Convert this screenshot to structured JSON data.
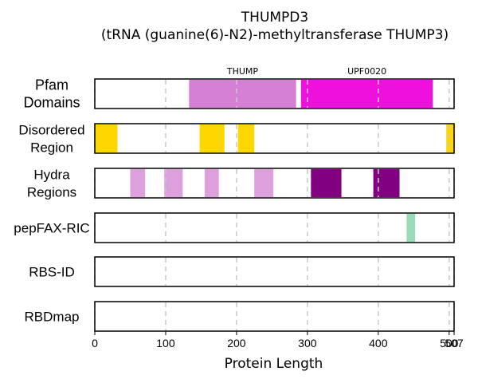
{
  "title_line1": "THUMPD3",
  "title_line2": "(tRNA (guanine(6)-N2)-methyltransferase THUMP3)",
  "chart_data": {
    "type": "track",
    "xlabel": "Protein Length",
    "xlim": [
      0,
      507
    ],
    "xticks": [
      0,
      100,
      200,
      300,
      400,
      500,
      507
    ],
    "xtick_labels": [
      "0",
      "100",
      "200",
      "300",
      "400",
      "500",
      "507"
    ],
    "protein_length": 507,
    "grid": "dashed vertical at ticks",
    "tracks": [
      {
        "name": "Pfam Domains",
        "label_lines": [
          "Pfam",
          "Domains"
        ],
        "segments": [
          {
            "start": 133,
            "end": 284,
            "color": "#d580d5",
            "label": "THUMP"
          },
          {
            "start": 291,
            "end": 477,
            "color": "#ee11dd",
            "label": "UPF0020"
          }
        ]
      },
      {
        "name": "Disordered Region",
        "label_lines": [
          "Disordered",
          "Region"
        ],
        "segments": [
          {
            "start": 0,
            "end": 32,
            "color": "#ffd700"
          },
          {
            "start": 148,
            "end": 183,
            "color": "#ffd700"
          },
          {
            "start": 202,
            "end": 225,
            "color": "#ffd700"
          },
          {
            "start": 496,
            "end": 507,
            "color": "#ffd700"
          }
        ]
      },
      {
        "name": "Hydra Regions",
        "label_lines": [
          "Hydra",
          "Regions"
        ],
        "segments": [
          {
            "start": 50,
            "end": 71,
            "color": "#dda0dd"
          },
          {
            "start": 98,
            "end": 124,
            "color": "#dda0dd"
          },
          {
            "start": 155,
            "end": 175,
            "color": "#dda0dd"
          },
          {
            "start": 225,
            "end": 252,
            "color": "#dda0dd"
          },
          {
            "start": 305,
            "end": 348,
            "color": "#800080"
          },
          {
            "start": 393,
            "end": 430,
            "color": "#800080"
          }
        ]
      },
      {
        "name": "pepFAX-RIC",
        "label_lines": [
          "pepFAX-RIC"
        ],
        "segments": [
          {
            "start": 440,
            "end": 452,
            "color": "#99dbb6"
          }
        ]
      },
      {
        "name": "RBS-ID",
        "label_lines": [
          "RBS-ID"
        ],
        "segments": []
      },
      {
        "name": "RBDmap",
        "label_lines": [
          "RBDmap"
        ],
        "segments": []
      }
    ]
  }
}
